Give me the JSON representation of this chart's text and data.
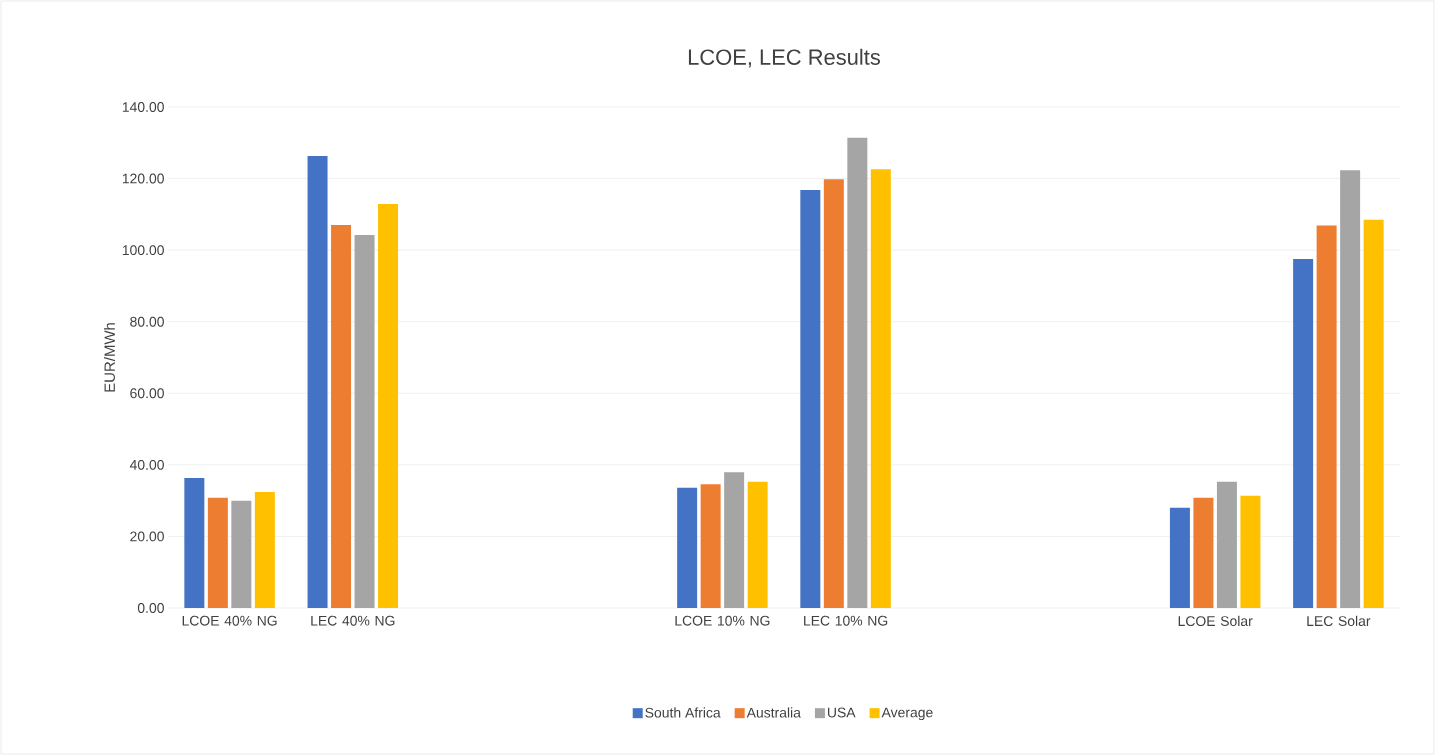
{
  "chart_data": {
    "type": "bar",
    "title": "LCOE, LEC Results",
    "ylabel": "EUR/MWh",
    "categories": [
      "LCOE 40% NG",
      "LEC 40% NG",
      null,
      null,
      "LCOE 10% NG",
      "LEC 10% NG",
      null,
      null,
      "LCOE Solar",
      "LEC Solar"
    ],
    "series": [
      {
        "name": "South Africa",
        "color": "#4472c4",
        "values": [
          36.3,
          126.3,
          null,
          null,
          33.6,
          116.8,
          null,
          null,
          28.0,
          97.5
        ]
      },
      {
        "name": "Australia",
        "color": "#ed7d31",
        "values": [
          30.8,
          107.0,
          null,
          null,
          34.6,
          119.8,
          null,
          null,
          30.8,
          106.9
        ]
      },
      {
        "name": "USA",
        "color": "#a5a5a5",
        "values": [
          30.0,
          104.2,
          null,
          null,
          37.9,
          131.4,
          null,
          null,
          35.3,
          122.3
        ]
      },
      {
        "name": "Average",
        "color": "#ffc000",
        "values": [
          32.4,
          112.9,
          null,
          null,
          35.3,
          122.6,
          null,
          null,
          31.4,
          108.5
        ]
      }
    ],
    "ylim": [
      0,
      140
    ],
    "yticks": [
      {
        "value": 0,
        "label": "0.00"
      },
      {
        "value": 20,
        "label": "20.00"
      },
      {
        "value": 40,
        "label": "40.00"
      },
      {
        "value": 60,
        "label": "60.00"
      },
      {
        "value": 80,
        "label": "80.00"
      },
      {
        "value": 100,
        "label": "100.00"
      },
      {
        "value": 120,
        "label": "120.00"
      },
      {
        "value": 140,
        "label": "140.00"
      }
    ],
    "grid": "y",
    "legend": "bottom"
  }
}
